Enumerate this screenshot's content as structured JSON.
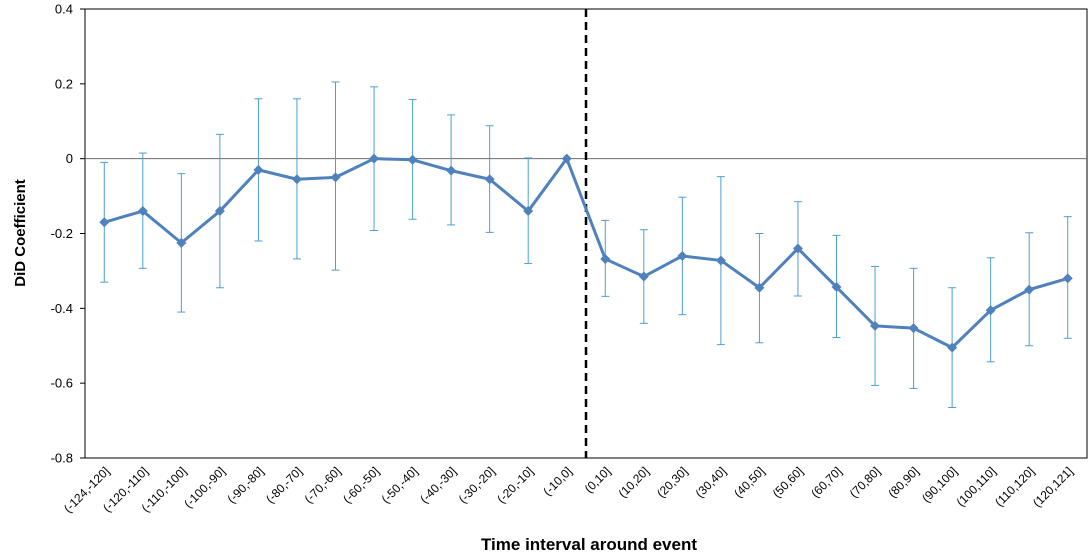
{
  "chart_data": {
    "type": "line",
    "xlabel": "Time interval around event",
    "ylabel": "DiD Coefficient",
    "ylim": [
      -0.8,
      0.4
    ],
    "y_ticks": [
      "0.4",
      "0.2",
      "0",
      "-0.2",
      "-0.4",
      "-0.6",
      "-0.8"
    ],
    "y_tick_values": [
      0.4,
      0.2,
      0,
      -0.2,
      -0.4,
      -0.6,
      -0.8
    ],
    "categories": [
      "(-124,-120]",
      "(-120,-110]",
      "(-110,-100]",
      "(-100,-90]",
      "(-90,-80]",
      "(-80,-70]",
      "(-70,-60]",
      "(-60,-50]",
      "(-50,-40]",
      "(-40,-30]",
      "(-30,-20]",
      "(-20,-10]",
      "(-10,0]",
      "(0,10]",
      "(10,20]",
      "(20,30]",
      "(30,40]",
      "(40,50]",
      "(50,60]",
      "(60,70]",
      "(70,80]",
      "(80,90]",
      "(90,100]",
      "(100,110]",
      "(110,120]",
      "(120,121]"
    ],
    "series": [
      {
        "values": [
          -0.17,
          -0.14,
          -0.225,
          -0.14,
          -0.03,
          -0.055,
          -0.05,
          0.0,
          -0.003,
          -0.032,
          -0.055,
          -0.14,
          0.0,
          -0.268,
          -0.315,
          -0.26,
          -0.272,
          -0.345,
          -0.24,
          -0.343,
          -0.447,
          -0.453,
          -0.505,
          -0.405,
          -0.35,
          -0.32
        ],
        "upper": [
          -0.01,
          0.015,
          -0.04,
          0.065,
          0.16,
          0.16,
          0.205,
          0.192,
          0.158,
          0.117,
          0.088,
          0.002,
          0.0,
          -0.165,
          -0.19,
          -0.103,
          -0.048,
          -0.2,
          -0.115,
          -0.205,
          -0.288,
          -0.293,
          -0.345,
          -0.265,
          -0.198,
          -0.155
        ],
        "lower": [
          -0.33,
          -0.293,
          -0.41,
          -0.345,
          -0.22,
          -0.268,
          -0.298,
          -0.192,
          -0.162,
          -0.177,
          -0.197,
          -0.28,
          0.0,
          -0.368,
          -0.44,
          -0.417,
          -0.497,
          -0.492,
          -0.367,
          -0.478,
          -0.606,
          -0.614,
          -0.665,
          -0.543,
          -0.5,
          -0.48
        ],
        "color": "#4f81bd",
        "marker": "diamond"
      }
    ],
    "error_bar_color": "#4aa0d5",
    "event_line_between": [
      "(-10,0]",
      "(0,10]"
    ],
    "zero_line": true,
    "grid": false,
    "legend": false
  }
}
